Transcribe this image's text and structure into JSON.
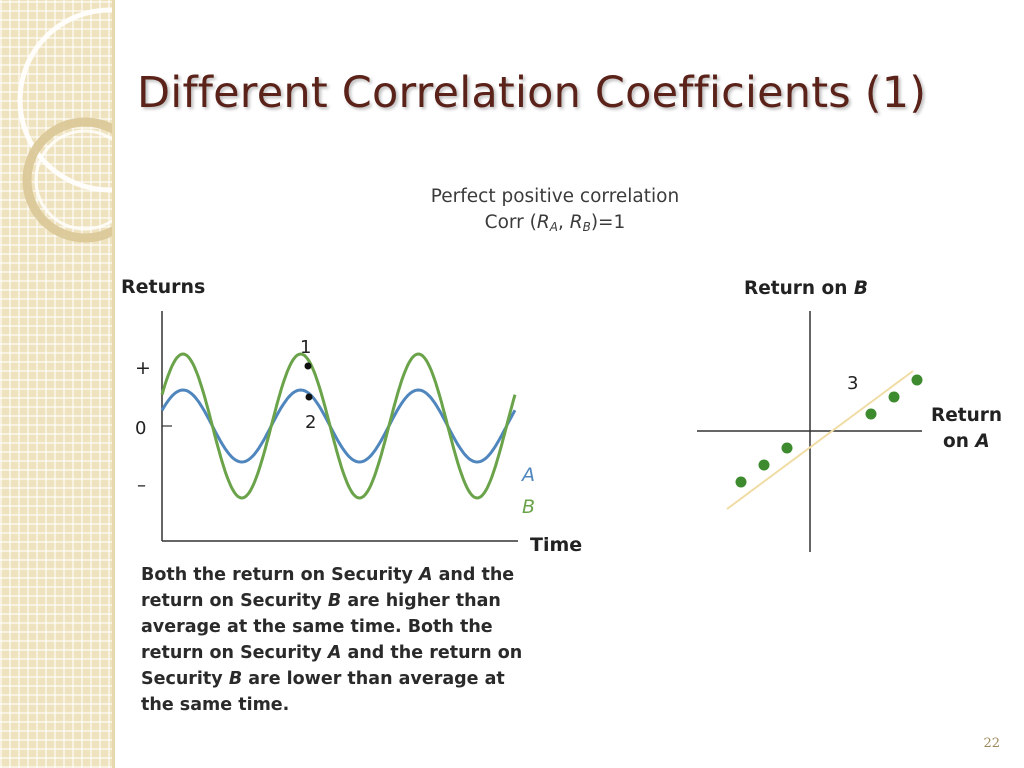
{
  "slide": {
    "title": "Different Correlation Coefficients (1)",
    "page_number": "22"
  },
  "caption": {
    "line1": "Perfect positive correlation",
    "corr_prefix": "Corr (",
    "ra_letter": "R",
    "ra_sub": "A",
    "separator": ", ",
    "rb_letter": "R",
    "rb_sub": "B",
    "corr_suffix": ")=1"
  },
  "time_series_chart": {
    "y_axis_title": "Returns",
    "x_axis_title": "Time",
    "tick_plus": "+",
    "tick_zero": "0",
    "tick_minus": "–",
    "series": [
      {
        "name": "A",
        "color": "#4f86bd",
        "amplitude": 1,
        "cycles": 3
      },
      {
        "name": "B",
        "color": "#6aa349",
        "amplitude": 2,
        "cycles": 3
      }
    ],
    "point_labels": [
      "1",
      "2"
    ]
  },
  "scatter_chart": {
    "y_axis_title_prefix": "Return on ",
    "y_axis_title_var": "B",
    "x_axis_title_line1": "Return",
    "x_axis_title_line2_prefix": "on ",
    "x_axis_title_var": "A",
    "point_label": "3",
    "point_color": "#3d8b2e",
    "line_color": "#f0dca4"
  },
  "description": {
    "s1": "Both the return on Security ",
    "v1": "A",
    "s2": " and the return on Security ",
    "v2": "B",
    "s3": " are higher than average at the same time.  Both the return on Security ",
    "v3": "A",
    "s4": " and the return on Security ",
    "v4": "B",
    "s5": " are lower than average at the same time."
  },
  "chart_data": [
    {
      "type": "line",
      "xlabel": "Time",
      "ylabel": "Returns",
      "series": [
        {
          "name": "A",
          "values": [
            0,
            1,
            0,
            -1,
            0,
            1,
            0,
            -1,
            0,
            1,
            0,
            -1,
            0
          ]
        },
        {
          "name": "B",
          "values": [
            0,
            2,
            0,
            -2,
            0,
            2,
            0,
            -2,
            0,
            2,
            0,
            -2,
            0
          ]
        }
      ],
      "y_tick_labels": [
        "+",
        "0",
        "–"
      ]
    },
    {
      "type": "scatter",
      "xlabel": "Return on A",
      "ylabel": "Return on B",
      "x": [
        -3,
        -2,
        -1,
        2,
        3,
        4
      ],
      "y": [
        -3,
        -2,
        -1,
        1,
        2,
        3
      ]
    }
  ]
}
